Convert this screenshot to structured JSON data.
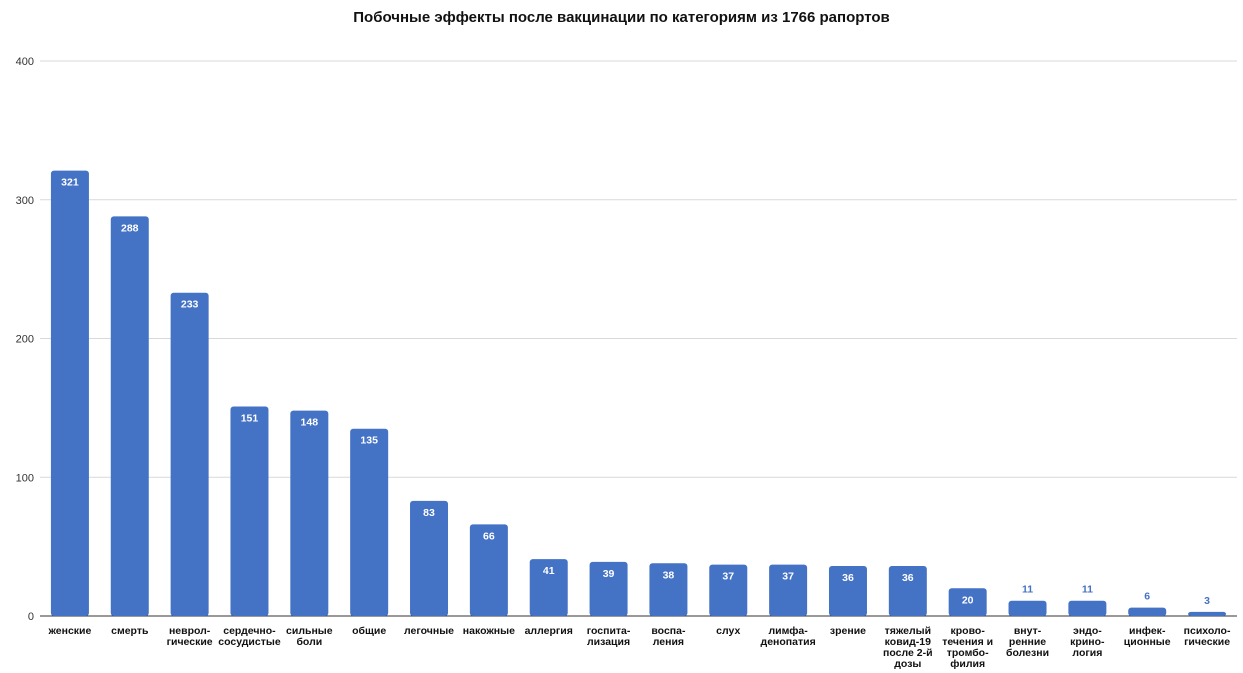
{
  "chart_data": {
    "type": "bar",
    "title": "Побочные эффекты после вакцинации по категориям из 1766 рапортов",
    "xlabel": "",
    "ylabel": "",
    "ylim": [
      0,
      400
    ],
    "yticks": [
      "0",
      "100",
      "200",
      "300",
      "400"
    ],
    "grid": true,
    "bar_color": "#4472c4",
    "label_inside_color": "#ffffff",
    "label_outside_color": "#4472c4",
    "categories": [
      [
        "женские"
      ],
      [
        "смерть"
      ],
      [
        "неврол-",
        "гические"
      ],
      [
        "сердечно-",
        "сосудистые"
      ],
      [
        "сильные",
        "боли"
      ],
      [
        "общие"
      ],
      [
        "легочные"
      ],
      [
        "накожные"
      ],
      [
        "аллергия"
      ],
      [
        "госпита-",
        "лизация"
      ],
      [
        "воспа-",
        "ления"
      ],
      [
        "слух"
      ],
      [
        "лимфа-",
        "денопатия"
      ],
      [
        "зрение"
      ],
      [
        "тяжелый",
        "ковид-19",
        "после 2-й",
        "дозы"
      ],
      [
        "крово-",
        "течения и",
        "тромбо-",
        "филия"
      ],
      [
        "внут-",
        "ренние",
        "болезни"
      ],
      [
        "эндо-",
        "крино-",
        "логия"
      ],
      [
        "инфек-",
        "ционные"
      ],
      [
        "психоло-",
        "гические"
      ]
    ],
    "values": [
      321,
      288,
      233,
      151,
      148,
      135,
      83,
      66,
      41,
      39,
      38,
      37,
      37,
      36,
      36,
      20,
      11,
      11,
      6,
      3
    ]
  }
}
